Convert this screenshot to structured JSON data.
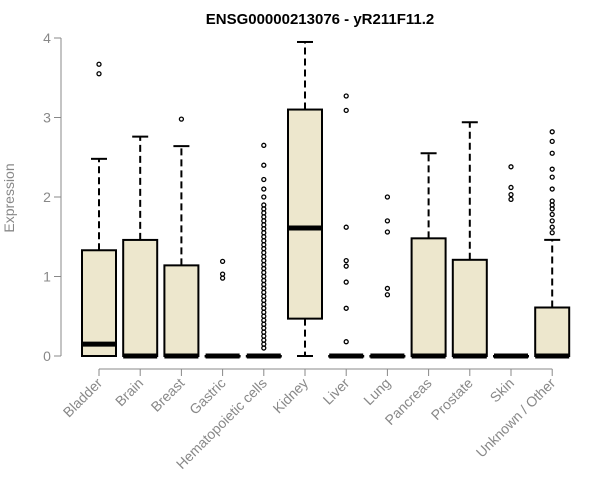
{
  "chart_data": {
    "type": "box",
    "title": "ENSG00000213076 - yR211F11.2",
    "xlabel": "",
    "ylabel": "Expression",
    "ylim": [
      0,
      4
    ],
    "yticks": [
      0,
      1,
      2,
      3,
      4
    ],
    "grid": false,
    "colors": {
      "box_fill": "#ede7cd",
      "stroke": "#000000",
      "axis": "#888888"
    },
    "categories": [
      "Bladder",
      "Brain",
      "Breast",
      "Gastric",
      "Hematopoietic cells",
      "Kidney",
      "Liver",
      "Lung",
      "Pancreas",
      "Prostate",
      "Skin",
      "Unknown / Other"
    ],
    "boxes": [
      {
        "q1": 0,
        "median": 0.15,
        "q3": 1.33,
        "whisker_low": 0,
        "whisker_high": 2.48,
        "outliers": [
          3.55,
          3.67
        ]
      },
      {
        "q1": 0,
        "median": 0,
        "q3": 1.46,
        "whisker_low": 0,
        "whisker_high": 2.76,
        "outliers": []
      },
      {
        "q1": 0,
        "median": 0,
        "q3": 1.14,
        "whisker_low": 0,
        "whisker_high": 2.64,
        "outliers": [
          2.98
        ]
      },
      {
        "q1": 0,
        "median": 0,
        "q3": 0,
        "whisker_low": 0,
        "whisker_high": 0,
        "outliers": [
          0.98,
          1.03,
          1.19
        ]
      },
      {
        "q1": 0,
        "median": 0,
        "q3": 0,
        "whisker_low": 0,
        "whisker_high": 0,
        "outliers": [
          0.1,
          0.15,
          0.2,
          0.25,
          0.3,
          0.35,
          0.4,
          0.45,
          0.5,
          0.55,
          0.6,
          0.65,
          0.7,
          0.75,
          0.8,
          0.85,
          0.9,
          0.95,
          1.0,
          1.05,
          1.1,
          1.15,
          1.2,
          1.25,
          1.3,
          1.35,
          1.4,
          1.45,
          1.5,
          1.55,
          1.6,
          1.65,
          1.7,
          1.75,
          1.8,
          1.85,
          1.9,
          2.0,
          2.1,
          2.22,
          2.4,
          2.65
        ]
      },
      {
        "q1": 0.47,
        "median": 1.61,
        "q3": 3.1,
        "whisker_low": 0,
        "whisker_high": 3.95,
        "outliers": []
      },
      {
        "q1": 0,
        "median": 0,
        "q3": 0,
        "whisker_low": 0,
        "whisker_high": 0,
        "outliers": [
          0.18,
          0.6,
          0.93,
          1.13,
          1.2,
          1.62,
          3.09,
          3.27
        ]
      },
      {
        "q1": 0,
        "median": 0,
        "q3": 0,
        "whisker_low": 0,
        "whisker_high": 0,
        "outliers": [
          0.77,
          0.85,
          1.56,
          1.7,
          2.0
        ]
      },
      {
        "q1": 0,
        "median": 0,
        "q3": 1.48,
        "whisker_low": 0,
        "whisker_high": 2.55,
        "outliers": []
      },
      {
        "q1": 0,
        "median": 0,
        "q3": 1.21,
        "whisker_low": 0,
        "whisker_high": 2.94,
        "outliers": []
      },
      {
        "q1": 0,
        "median": 0,
        "q3": 0,
        "whisker_low": 0,
        "whisker_high": 0,
        "outliers": [
          1.97,
          2.03,
          2.12,
          2.38
        ]
      },
      {
        "q1": 0,
        "median": 0,
        "q3": 0.61,
        "whisker_low": 0,
        "whisker_high": 1.46,
        "outliers": [
          1.55,
          1.62,
          1.7,
          1.78,
          1.85,
          1.9,
          1.95,
          2.1,
          2.25,
          2.35,
          2.55,
          2.7,
          2.82
        ]
      }
    ]
  }
}
